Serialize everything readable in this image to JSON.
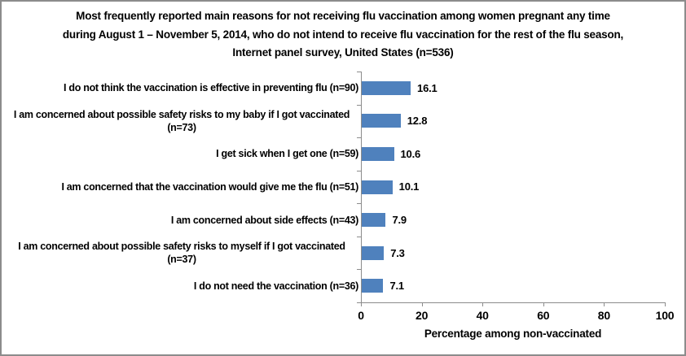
{
  "chart_data": {
    "type": "bar",
    "orientation": "horizontal",
    "title": "Most frequently reported main reasons for not receiving flu vaccination among women pregnant any time during August 1 – November 5, 2014, who do not intend to receive flu vaccination for the rest of the flu season, Internet panel survey, United States (n=536)",
    "title_lines": [
      "Most frequently reported main reasons for not receiving flu vaccination among women pregnant any time",
      "during August 1 – November 5, 2014, who do not intend to receive flu vaccination for the rest of the flu season,",
      "Internet panel survey, United States (n=536)"
    ],
    "categories": [
      "I do not think the vaccination is effective in preventing flu (n=90)",
      "I am concerned about possible safety risks to my baby if I got vaccinated (n=73)",
      "I get sick when I get one (n=59)",
      "I am concerned that the vaccination would give me the flu (n=51)",
      "I am concerned about side effects (n=43)",
      "I am concerned about possible safety risks to myself if I got vaccinated (n=37)",
      "I do not need the vaccination (n=36)"
    ],
    "values": [
      16.1,
      12.8,
      10.6,
      10.1,
      7.9,
      7.3,
      7.1
    ],
    "value_labels": [
      "16.1",
      "12.8",
      "10.6",
      "10.1",
      "7.9",
      "7.3",
      "7.1"
    ],
    "xlabel": "Percentage among non-vaccinated",
    "xlim": [
      0,
      100
    ],
    "xticks": [
      0,
      20,
      40,
      60,
      80,
      100
    ],
    "grid": false,
    "legend": "none",
    "bar_color": "#4F81BD",
    "axis_color": "#8c8c8c",
    "text_color": "#000000"
  }
}
